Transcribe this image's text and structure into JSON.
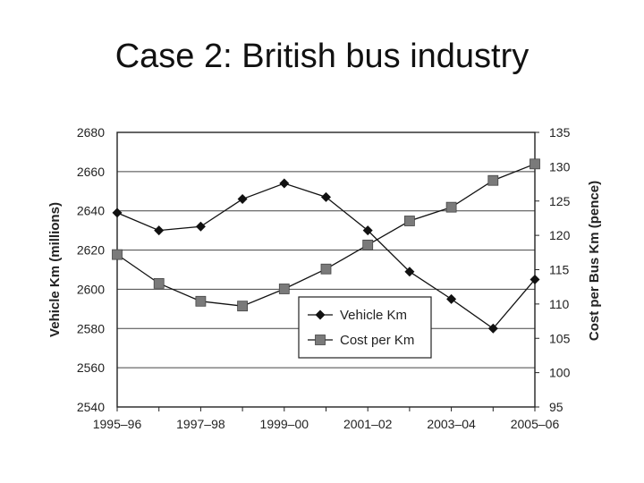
{
  "slide": {
    "title": "Case 2: British bus industry"
  },
  "chart_data": {
    "type": "line",
    "x": [
      "1995–96",
      "1996–97",
      "1997–98",
      "1998–99",
      "1999–00",
      "2000–01",
      "2001–02",
      "2002–03",
      "2003–04",
      "2004–05",
      "2005–06"
    ],
    "x_tick_labels": [
      "1995–96",
      "1997–98",
      "1999–00",
      "2001–02",
      "2003–04",
      "2005–06"
    ],
    "series": [
      {
        "name": "Vehicle Km",
        "axis": "left",
        "marker": "diamond",
        "color": "#111111",
        "values": [
          2639,
          2630,
          2632,
          2646,
          2654,
          2647,
          2630,
          2609,
          2595,
          2580,
          2605
        ]
      },
      {
        "name": "Cost per Km",
        "axis": "right",
        "marker": "square",
        "color": "#7a7a7a",
        "values": [
          117.2,
          113.0,
          110.4,
          109.7,
          112.2,
          115.1,
          118.6,
          122.1,
          124.1,
          128.0,
          130.4
        ]
      }
    ],
    "ylabel": "Vehicle Km (millions)",
    "y2label": "Cost per Bus Km (pence)",
    "ylim": [
      2540,
      2680
    ],
    "y_ticks": [
      2540,
      2560,
      2580,
      2600,
      2620,
      2640,
      2660,
      2680
    ],
    "y2lim": [
      95,
      135
    ],
    "y2_ticks": [
      95,
      100,
      105,
      110,
      115,
      120,
      125,
      130,
      135
    ],
    "grid": true,
    "legend_position": "lower-center"
  }
}
